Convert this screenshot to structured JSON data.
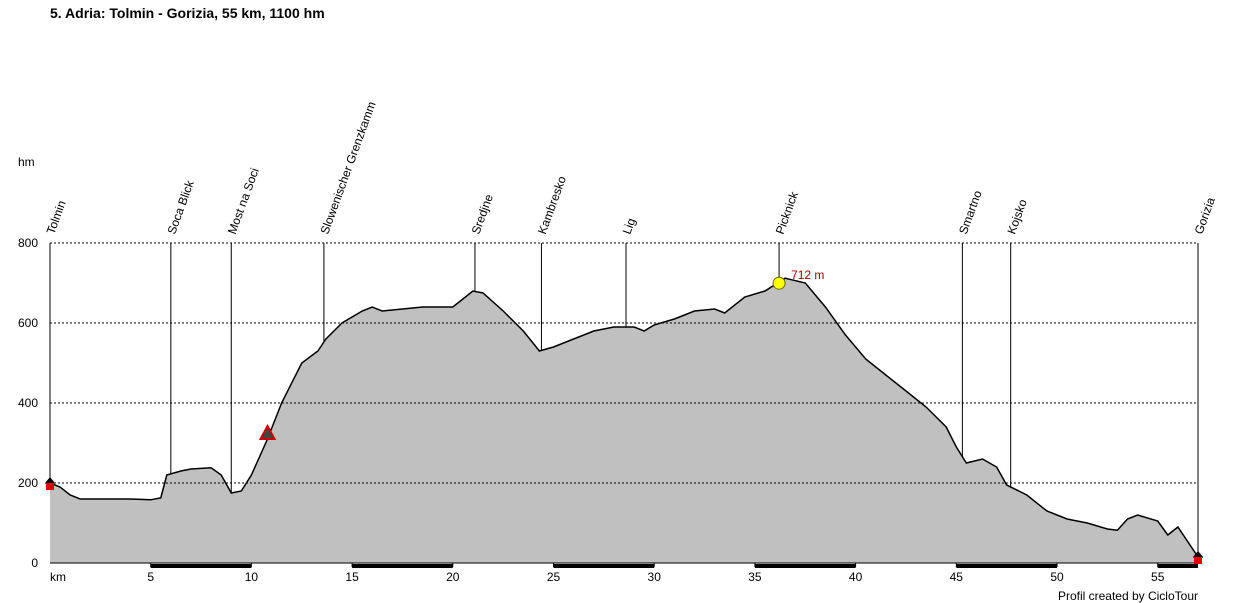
{
  "chart_data": {
    "type": "area",
    "title": "5. Adria: Tolmin - Gorizia, 55 km, 1100 hm",
    "y_label": "hm",
    "x_label": "km",
    "footer": "Profil created by CicloTour",
    "xlim": [
      0,
      57
    ],
    "xticks": [
      5,
      10,
      15,
      20,
      25,
      30,
      35,
      40,
      45,
      50,
      55
    ],
    "ylim": [
      0,
      800
    ],
    "yticks": [
      0,
      200,
      400,
      600,
      800
    ],
    "grid": true,
    "color": "#c0c0c0",
    "x": [
      0,
      0.5,
      1,
      1.5,
      3,
      4,
      5,
      5.5,
      5.8,
      6.5,
      7,
      8,
      8.5,
      9,
      9.5,
      10,
      10.8,
      11.5,
      12.5,
      13.3,
      13.7,
      14.5,
      15.5,
      16,
      16.5,
      17.5,
      18.5,
      19.5,
      20,
      20.5,
      21,
      21.5,
      22.5,
      23.5,
      24.3,
      25,
      26,
      27,
      28,
      29,
      29.5,
      30,
      31,
      32,
      33,
      33.5,
      34.5,
      35.5,
      36.5,
      37.5,
      38.5,
      39.5,
      40.5,
      41.5,
      42.5,
      43.5,
      44.5,
      45,
      45.5,
      46.3,
      47,
      47.5,
      48.5,
      49.5,
      50.5,
      51.5,
      52.5,
      53,
      53.5,
      54,
      55,
      55.5,
      56,
      57
    ],
    "values": [
      200,
      190,
      170,
      160,
      160,
      160,
      158,
      163,
      220,
      230,
      235,
      238,
      220,
      175,
      180,
      220,
      310,
      400,
      500,
      530,
      560,
      600,
      630,
      640,
      630,
      635,
      640,
      640,
      640,
      660,
      680,
      675,
      630,
      580,
      530,
      540,
      560,
      580,
      590,
      590,
      580,
      595,
      610,
      630,
      635,
      625,
      665,
      680,
      712,
      700,
      640,
      570,
      510,
      470,
      430,
      390,
      340,
      290,
      250,
      260,
      240,
      195,
      170,
      130,
      110,
      100,
      85,
      82,
      110,
      120,
      105,
      70,
      90,
      15
    ],
    "peak": {
      "x": 36.2,
      "value": 712,
      "label": "712 m"
    },
    "waypoints": [
      {
        "name": "Tolmin",
        "x": 0
      },
      {
        "name": "Soca Blick",
        "x": 6
      },
      {
        "name": "Most na Soci",
        "x": 9
      },
      {
        "name": "Slowenischer Grenzkamm",
        "x": 13.6
      },
      {
        "name": "Sredjne",
        "x": 21.1
      },
      {
        "name": "Kambresko",
        "x": 24.4
      },
      {
        "name": "Lig",
        "x": 28.6
      },
      {
        "name": "Picknick",
        "x": 36.2
      },
      {
        "name": "Smartno",
        "x": 45.3
      },
      {
        "name": "Kojsko",
        "x": 47.7
      },
      {
        "name": "Gorizia",
        "x": 57
      }
    ],
    "climb_marker": {
      "x": 10.8,
      "value": 325
    }
  }
}
